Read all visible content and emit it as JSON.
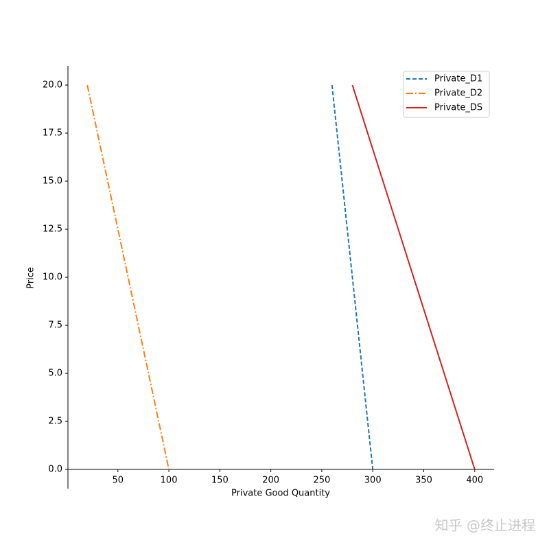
{
  "chart_data": {
    "type": "line",
    "xlabel": "Private Good Quantity",
    "ylabel": "Price",
    "xlim": [
      1,
      419
    ],
    "ylim": [
      -1,
      21
    ],
    "xticks": [
      50,
      100,
      150,
      200,
      250,
      300,
      350,
      400
    ],
    "yticks": [
      {
        "value": 0,
        "label": "0.0"
      },
      2.5,
      {
        "value": 5,
        "label": "5.0"
      },
      7.5,
      {
        "value": 10,
        "label": "10.0"
      },
      12.5,
      {
        "value": 15,
        "label": "15.0"
      },
      17.5,
      {
        "value": 20,
        "label": "20.0"
      }
    ],
    "legend": "upper right",
    "series": [
      {
        "name": "Private_D1",
        "color": "#1f77b4",
        "linestyle": "dashed",
        "x": [
          260,
          300
        ],
        "values": [
          20,
          0
        ]
      },
      {
        "name": "Private_D2",
        "color": "#ff7f0e",
        "linestyle": "dashdot",
        "x": [
          20,
          100
        ],
        "values": [
          20,
          0
        ]
      },
      {
        "name": "Private_DS",
        "color": "#d62020",
        "linestyle": "solid",
        "x": [
          280,
          400
        ],
        "values": [
          20,
          0
        ]
      }
    ]
  },
  "watermark": "知乎 @终止进程"
}
